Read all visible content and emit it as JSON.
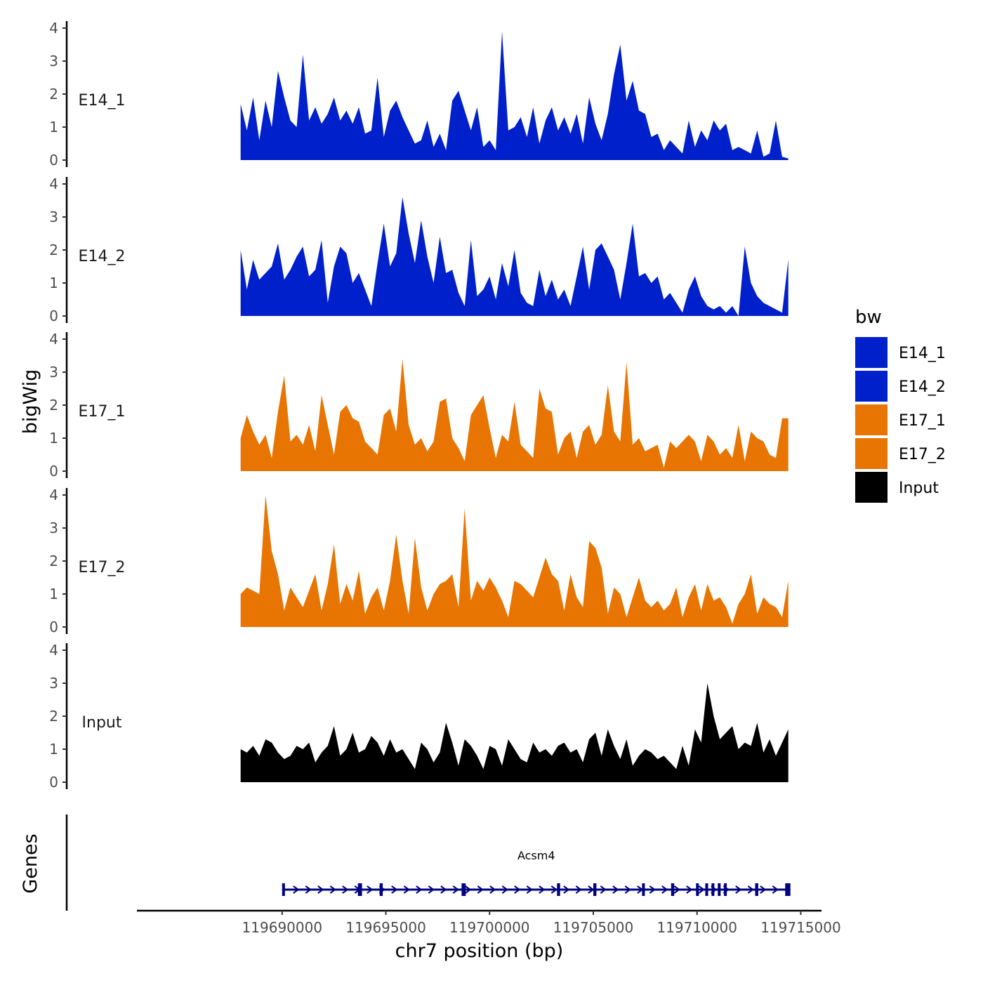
{
  "chart_data": {
    "type": "area",
    "ylabel": "bigWig",
    "xlabel": "chr7 position (bp)",
    "xlim": [
      119683000,
      119716000
    ],
    "ylim": [
      0,
      4
    ],
    "y_ticks": [
      "0",
      "1",
      "2",
      "3",
      "4"
    ],
    "x_ticks": [
      119690000,
      119695000,
      119700000,
      119705000,
      119710000,
      119715000
    ],
    "x_tick_labels": [
      "119690000",
      "119695000",
      "119700000",
      "119705000",
      "119710000",
      "119715000"
    ],
    "legend": {
      "title": "bw",
      "position": "right",
      "entries": [
        {
          "label": "E14_1",
          "color": "#0020CC"
        },
        {
          "label": "E14_2",
          "color": "#0020CC"
        },
        {
          "label": "E17_1",
          "color": "#E87502"
        },
        {
          "label": "E17_2",
          "color": "#E87502"
        },
        {
          "label": "Input",
          "color": "#000000"
        }
      ]
    },
    "x": [
      119688000,
      119688300,
      119688600,
      119688900,
      119689200,
      119689500,
      119689800,
      119690100,
      119690400,
      119690700,
      119691000,
      119691300,
      119691600,
      119691900,
      119692200,
      119692500,
      119692800,
      119693100,
      119693400,
      119693700,
      119694000,
      119694300,
      119694600,
      119694900,
      119695200,
      119695500,
      119695800,
      119696100,
      119696400,
      119696700,
      119697000,
      119697300,
      119697600,
      119697900,
      119698200,
      119698500,
      119698800,
      119699100,
      119699400,
      119699700,
      119700000,
      119700300,
      119700600,
      119700900,
      119701200,
      119701500,
      119701800,
      119702100,
      119702400,
      119702700,
      119703000,
      119703300,
      119703600,
      119703900,
      119704200,
      119704500,
      119704800,
      119705100,
      119705400,
      119705700,
      119706000,
      119706300,
      119706600,
      119706900,
      119707200,
      119707500,
      119707800,
      119708100,
      119708400,
      119708700,
      119709000,
      119709300,
      119709600,
      119709900,
      119710200,
      119710500,
      119710800,
      119711100,
      119711400,
      119711700,
      119712000,
      119712300,
      119712600,
      119712900,
      119713200,
      119713500,
      119713800,
      119714100,
      119714400
    ],
    "series": [
      {
        "name": "E14_1",
        "color": "#0020CC",
        "values": [
          1.7,
          0.9,
          1.9,
          0.6,
          1.8,
          1.0,
          2.7,
          1.9,
          1.2,
          1.0,
          3.2,
          1.2,
          1.6,
          1.1,
          1.4,
          1.9,
          1.2,
          1.5,
          1.1,
          1.6,
          0.8,
          0.9,
          2.5,
          0.7,
          1.5,
          1.8,
          1.3,
          0.9,
          0.5,
          0.6,
          1.2,
          0.4,
          0.8,
          0.3,
          1.8,
          2.1,
          1.5,
          0.9,
          1.6,
          0.4,
          0.6,
          0.3,
          3.9,
          0.9,
          1.0,
          1.3,
          0.7,
          1.6,
          0.5,
          1.2,
          1.6,
          0.9,
          1.3,
          0.8,
          1.4,
          0.5,
          1.9,
          1.1,
          0.6,
          1.4,
          2.6,
          3.5,
          1.8,
          2.4,
          1.5,
          1.4,
          0.7,
          0.8,
          0.3,
          0.6,
          0.4,
          0.2,
          1.2,
          0.4,
          0.9,
          0.6,
          1.2,
          0.9,
          1.1,
          0.3,
          0.4,
          0.3,
          0.2,
          0.9,
          0.1,
          0.2,
          1.2,
          0.1,
          0.05
        ]
      },
      {
        "name": "E14_2",
        "color": "#0020CC",
        "values": [
          2.0,
          0.8,
          1.7,
          1.1,
          1.3,
          1.5,
          2.2,
          1.1,
          1.4,
          1.8,
          2.1,
          1.2,
          1.4,
          2.3,
          0.4,
          1.5,
          2.1,
          1.9,
          1.0,
          1.3,
          0.8,
          0.3,
          1.6,
          2.8,
          1.5,
          1.9,
          3.6,
          2.5,
          1.6,
          2.9,
          1.8,
          1.0,
          2.4,
          1.3,
          1.4,
          0.7,
          0.3,
          2.3,
          0.6,
          0.8,
          1.2,
          0.5,
          1.6,
          0.9,
          2.0,
          0.7,
          0.4,
          0.3,
          1.4,
          0.6,
          1.1,
          0.5,
          0.8,
          0.3,
          1.2,
          2.1,
          0.8,
          2.0,
          2.2,
          1.8,
          1.4,
          0.5,
          1.6,
          2.8,
          1.2,
          1.3,
          1.0,
          1.2,
          0.5,
          0.7,
          0.4,
          0.1,
          0.8,
          1.2,
          0.6,
          0.3,
          0.2,
          0.3,
          0.1,
          0.3,
          0.0,
          2.1,
          1.0,
          0.6,
          0.4,
          0.3,
          0.2,
          0.1,
          1.7
        ]
      },
      {
        "name": "E17_1",
        "color": "#E87502",
        "values": [
          1.0,
          1.7,
          1.2,
          0.8,
          1.1,
          0.4,
          1.8,
          2.9,
          0.9,
          1.1,
          0.8,
          1.4,
          0.6,
          2.3,
          1.4,
          0.5,
          1.8,
          2.0,
          1.6,
          1.5,
          0.9,
          0.7,
          0.5,
          1.7,
          1.9,
          1.2,
          3.4,
          1.4,
          0.8,
          1.0,
          0.6,
          0.9,
          2.1,
          2.2,
          1.0,
          0.7,
          0.3,
          1.7,
          2.0,
          2.3,
          1.3,
          0.4,
          1.1,
          0.9,
          2.1,
          0.8,
          0.6,
          0.4,
          2.5,
          1.9,
          1.8,
          0.5,
          1.0,
          1.2,
          0.4,
          1.2,
          1.4,
          0.8,
          1.1,
          2.6,
          1.2,
          0.9,
          3.3,
          0.8,
          1.0,
          0.6,
          0.7,
          0.8,
          0.1,
          0.9,
          0.7,
          0.9,
          1.1,
          0.9,
          0.3,
          1.1,
          0.9,
          0.5,
          0.7,
          0.4,
          1.4,
          0.3,
          1.2,
          1.0,
          0.9,
          0.5,
          0.4,
          1.6,
          1.6
        ]
      },
      {
        "name": "E17_2",
        "color": "#E87502",
        "values": [
          1.0,
          1.2,
          1.1,
          1.0,
          4.0,
          2.3,
          1.6,
          0.5,
          1.2,
          0.9,
          0.6,
          1.1,
          1.6,
          0.5,
          1.3,
          2.5,
          0.7,
          1.3,
          0.8,
          1.7,
          0.4,
          0.9,
          1.2,
          0.5,
          1.4,
          2.8,
          1.4,
          0.4,
          2.7,
          1.2,
          0.5,
          1.0,
          1.3,
          1.4,
          1.6,
          0.6,
          3.6,
          0.8,
          1.4,
          1.1,
          1.5,
          1.2,
          0.8,
          0.3,
          1.4,
          1.3,
          1.1,
          0.9,
          1.5,
          2.1,
          1.6,
          1.4,
          0.5,
          1.6,
          0.9,
          0.6,
          2.6,
          2.4,
          1.8,
          0.4,
          1.2,
          1.0,
          0.3,
          0.9,
          1.5,
          0.8,
          0.6,
          0.8,
          0.5,
          0.7,
          1.2,
          0.3,
          0.9,
          1.3,
          0.5,
          1.3,
          0.8,
          0.9,
          0.6,
          0.1,
          0.7,
          1.0,
          1.6,
          0.4,
          0.9,
          0.7,
          0.6,
          0.3,
          1.4
        ]
      },
      {
        "name": "Input",
        "color": "#000000",
        "values": [
          1.0,
          0.9,
          1.1,
          0.8,
          1.3,
          1.2,
          0.9,
          0.7,
          0.8,
          1.1,
          1.0,
          1.2,
          0.6,
          0.9,
          1.1,
          1.7,
          0.8,
          1.0,
          1.5,
          0.9,
          1.0,
          1.4,
          1.2,
          0.8,
          1.3,
          0.9,
          1.0,
          0.7,
          0.4,
          1.2,
          1.0,
          0.6,
          0.9,
          1.8,
          1.2,
          0.5,
          1.3,
          1.1,
          0.8,
          0.4,
          1.1,
          1.0,
          0.5,
          1.3,
          1.0,
          0.7,
          0.6,
          1.2,
          0.9,
          1.0,
          0.8,
          1.1,
          1.2,
          0.9,
          1.0,
          0.6,
          1.3,
          1.5,
          0.8,
          1.6,
          1.1,
          0.7,
          1.3,
          0.5,
          0.8,
          1.0,
          0.9,
          0.7,
          0.8,
          0.6,
          0.4,
          1.1,
          0.5,
          1.6,
          1.2,
          3.0,
          2.0,
          1.3,
          1.5,
          1.7,
          1.0,
          1.2,
          1.1,
          1.8,
          0.9,
          1.3,
          0.8,
          1.2,
          1.6
        ]
      }
    ],
    "genes": {
      "title": "Genes",
      "name": "Acsm4",
      "start": 119690000,
      "end": 119714500,
      "strand": "+",
      "color": "#000080",
      "exons": [
        [
          119690000,
          119690100
        ],
        [
          119693650,
          119693850
        ],
        [
          119694700,
          119694850
        ],
        [
          119698650,
          119698850
        ],
        [
          119703250,
          119703400
        ],
        [
          119705000,
          119705150
        ],
        [
          119707350,
          119707450
        ],
        [
          119708750,
          119708900
        ],
        [
          119709950,
          119710050
        ],
        [
          119710400,
          119710500
        ],
        [
          119710700,
          119710800
        ],
        [
          119711000,
          119711100
        ],
        [
          119711300,
          119711400
        ],
        [
          119712800,
          119712950
        ],
        [
          119714250,
          119714500
        ]
      ]
    }
  }
}
